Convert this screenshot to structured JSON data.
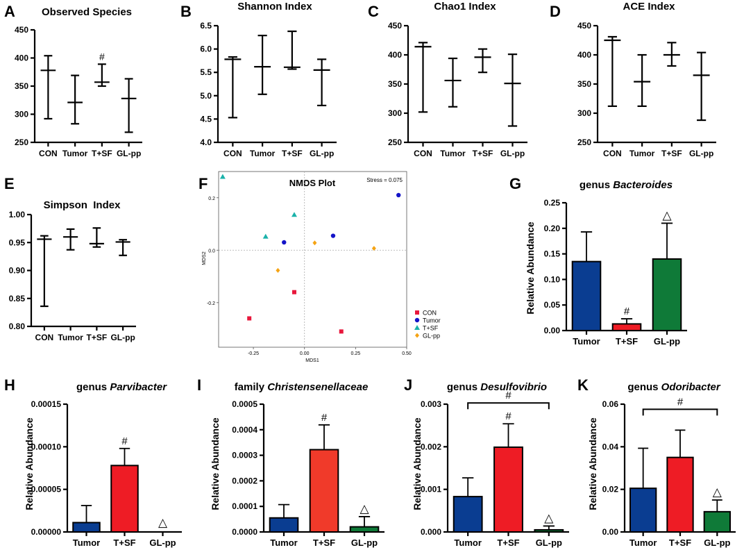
{
  "figure": {
    "background": "#ffffff"
  },
  "colors": {
    "axis": "#000000",
    "tumor": "#0a3d91",
    "tsf": "#ee1c25",
    "glpp": "#0f7a38",
    "con_pt": "#e8173c",
    "tumor_pt": "#1414c8",
    "tsf_pt": "#1ab2aa",
    "glpp_pt": "#f5a313"
  },
  "chart_data": [
    {
      "id": "A",
      "panel_letter": "A",
      "type": "errorbar",
      "title": "Observed Species",
      "categories": [
        "CON",
        "Tumor",
        "T+SF",
        "GL-pp"
      ],
      "center": [
        378,
        321,
        357,
        328
      ],
      "min": [
        292,
        283,
        350,
        268
      ],
      "max": [
        404,
        369,
        389,
        363
      ],
      "ylim": [
        250,
        450
      ],
      "yticks": [
        "250",
        "300",
        "350",
        "400",
        "450"
      ],
      "markers": [
        {
          "index": 2,
          "symbol": "#"
        }
      ]
    },
    {
      "id": "B",
      "panel_letter": "B",
      "type": "errorbar",
      "title": "Shannon Index",
      "categories": [
        "CON",
        "Tumor",
        "T+SF",
        "GL-pp"
      ],
      "center": [
        5.78,
        5.62,
        5.61,
        5.55
      ],
      "min": [
        4.53,
        5.03,
        5.57,
        4.79
      ],
      "max": [
        5.83,
        6.29,
        6.38,
        5.78
      ],
      "ylim": [
        4.0,
        6.5
      ],
      "yticks": [
        "4.0",
        "4.5",
        "5.0",
        "5.5",
        "6.0",
        "6.5"
      ],
      "markers": []
    },
    {
      "id": "C",
      "panel_letter": "C",
      "type": "errorbar",
      "title": "Chao1 Index",
      "categories": [
        "CON",
        "Tumor",
        "T+SF",
        "GL-pp"
      ],
      "center": [
        414,
        356,
        396,
        351
      ],
      "min": [
        302,
        311,
        370,
        278
      ],
      "max": [
        421,
        394,
        410,
        401
      ],
      "ylim": [
        250,
        450
      ],
      "yticks": [
        "250",
        "300",
        "350",
        "400",
        "450"
      ],
      "markers": []
    },
    {
      "id": "D",
      "panel_letter": "D",
      "type": "errorbar",
      "title": "ACE Index",
      "categories": [
        "CON",
        "Tumor",
        "T+SF",
        "GL-pp"
      ],
      "center": [
        425,
        354,
        400,
        365
      ],
      "min": [
        312,
        312,
        381,
        288
      ],
      "max": [
        431,
        400,
        421,
        404
      ],
      "ylim": [
        250,
        450
      ],
      "yticks": [
        "250",
        "300",
        "350",
        "400",
        "450"
      ],
      "markers": []
    },
    {
      "id": "E",
      "panel_letter": "E",
      "type": "errorbar",
      "title": "Simpson  Index",
      "categories": [
        "CON",
        "Tumor",
        "T+SF",
        "GL-pp"
      ],
      "center": [
        0.956,
        0.96,
        0.948,
        0.951
      ],
      "min": [
        0.836,
        0.937,
        0.942,
        0.927
      ],
      "max": [
        0.962,
        0.974,
        0.976,
        0.955
      ],
      "ylim": [
        0.8,
        1.0
      ],
      "yticks": [
        "0.80",
        "0.85",
        "0.90",
        "0.95",
        "1.00"
      ],
      "markers": []
    },
    {
      "id": "F",
      "panel_letter": "F",
      "type": "scatter",
      "title": "NMDS Plot",
      "stress_label": "Stress = 0.075",
      "xlabel": "MDS1",
      "ylabel": "MDS2",
      "xlim": [
        -0.42,
        0.5
      ],
      "ylim": [
        -0.37,
        0.3
      ],
      "xticks": [
        -0.25,
        0.0,
        0.25,
        0.5
      ],
      "xtick_labels": [
        "-0.25",
        "0.00",
        "0.25",
        "0.50"
      ],
      "yticks": [
        -0.2,
        0.0,
        0.2
      ],
      "ytick_labels": [
        "-0.2",
        "0.0",
        "0.2"
      ],
      "series": [
        {
          "name": "CON",
          "shape": "square",
          "color": "#e8173c",
          "points": [
            [
              -0.05,
              -0.16
            ],
            [
              -0.27,
              -0.26
            ],
            [
              0.18,
              -0.31
            ]
          ]
        },
        {
          "name": "Tumor",
          "shape": "circle",
          "color": "#1414c8",
          "points": [
            [
              -0.1,
              0.03
            ],
            [
              0.14,
              0.055
            ],
            [
              0.46,
              0.21
            ]
          ]
        },
        {
          "name": "T+SF",
          "shape": "triangle",
          "color": "#1ab2aa",
          "points": [
            [
              -0.4,
              0.28
            ],
            [
              -0.19,
              0.052
            ],
            [
              -0.05,
              0.135
            ]
          ]
        },
        {
          "name": "GL-pp",
          "shape": "diamond",
          "color": "#f5a313",
          "points": [
            [
              -0.13,
              -0.077
            ],
            [
              0.05,
              0.028
            ],
            [
              0.34,
              0.007
            ]
          ]
        }
      ]
    },
    {
      "id": "G",
      "panel_letter": "G",
      "type": "bar",
      "title_prefix": "genus ",
      "title_italic": "Bacteroides",
      "ylabel": "Relative Abundance",
      "categories": [
        "Tumor",
        "T+SF",
        "GL-pp"
      ],
      "values": [
        0.135,
        0.013,
        0.14
      ],
      "errors": [
        0.058,
        0.01,
        0.07
      ],
      "colors": [
        "#0a3d91",
        "#ee1c25",
        "#0f7a38"
      ],
      "ylim": [
        0,
        0.25
      ],
      "yticks": [
        "0.00",
        "0.05",
        "0.10",
        "0.15",
        "0.20",
        "0.25"
      ],
      "markers": [
        {
          "index": 1,
          "symbol": "#"
        },
        {
          "index": 2,
          "symbol": "△"
        }
      ],
      "bracket": null
    },
    {
      "id": "H",
      "panel_letter": "H",
      "type": "bar",
      "title_prefix": "genus ",
      "title_italic": "Parvibacter",
      "ylabel": "Relative Abundance",
      "categories": [
        "Tumor",
        "T+SF",
        "GL-pp"
      ],
      "values": [
        1.1e-05,
        7.8e-05,
        0
      ],
      "errors": [
        2e-05,
        2e-05,
        0
      ],
      "colors": [
        "#0a3d91",
        "#ee1c25",
        "#0f7a38"
      ],
      "ylim": [
        0,
        0.00015
      ],
      "yticks": [
        "0.00000",
        "0.00005",
        "0.00010",
        "0.00015"
      ],
      "markers": [
        {
          "index": 1,
          "symbol": "#"
        },
        {
          "index": 2,
          "symbol": "△"
        }
      ],
      "bracket": null
    },
    {
      "id": "I",
      "panel_letter": "I",
      "type": "bar",
      "title_prefix": "family ",
      "title_italic": "Christensenellaceae",
      "ylabel": "Relative Abundance",
      "categories": [
        "Tumor",
        "T+SF",
        "GL-pp"
      ],
      "values": [
        5.5e-05,
        0.000322,
        2e-05
      ],
      "errors": [
        5.2e-05,
        9.7e-05,
        4e-05
      ],
      "colors": [
        "#0a3d91",
        "#f03a2a",
        "#0f7a38"
      ],
      "ylim": [
        0,
        0.0005
      ],
      "yticks": [
        "0.0000",
        "0.0001",
        "0.0002",
        "0.0003",
        "0.0004",
        "0.0005"
      ],
      "markers": [
        {
          "index": 1,
          "symbol": "#"
        },
        {
          "index": 2,
          "symbol": "△"
        }
      ],
      "bracket": null
    },
    {
      "id": "J",
      "panel_letter": "J",
      "type": "bar",
      "title_prefix": "genus ",
      "title_italic": "Desulfovibrio",
      "ylabel": "Relative Abundance",
      "categories": [
        "Tumor",
        "T+SF",
        "GL-pp"
      ],
      "values": [
        0.00083,
        0.00199,
        5e-05
      ],
      "errors": [
        0.00044,
        0.00055,
        9e-05
      ],
      "colors": [
        "#0a3d91",
        "#ee1c25",
        "#0f7a38"
      ],
      "ylim": [
        0,
        0.003
      ],
      "yticks": [
        "0.000",
        "0.001",
        "0.002",
        "0.003"
      ],
      "markers": [
        {
          "index": 1,
          "symbol": "#"
        },
        {
          "index": 2,
          "symbol": "△"
        }
      ],
      "bracket": {
        "from": 0,
        "to": 2,
        "symbol": "#"
      }
    },
    {
      "id": "K",
      "panel_letter": "K",
      "type": "bar",
      "title_prefix": "genus ",
      "title_italic": "Odoribacter",
      "ylabel": "Relative Abundance",
      "categories": [
        "Tumor",
        "T+SF",
        "GL-pp"
      ],
      "values": [
        0.0205,
        0.035,
        0.0095
      ],
      "errors": [
        0.0188,
        0.0128,
        0.0055
      ],
      "colors": [
        "#0a3d91",
        "#ee1c25",
        "#0f7a38"
      ],
      "ylim": [
        0,
        0.06
      ],
      "yticks": [
        "0.00",
        "0.02",
        "0.04",
        "0.06"
      ],
      "markers": [
        {
          "index": 2,
          "symbol": "△"
        }
      ],
      "bracket": {
        "from": 0,
        "to": 2,
        "symbol": "#"
      }
    }
  ]
}
